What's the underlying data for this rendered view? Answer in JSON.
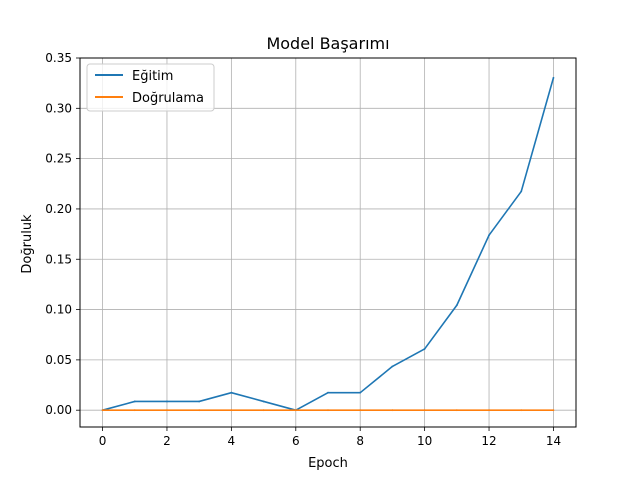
{
  "chart_data": {
    "type": "line",
    "title": "Model Başarımı",
    "xlabel": "Epoch",
    "ylabel": "Doğruluk",
    "xlim": [
      -0.7,
      14.7
    ],
    "ylim": [
      -0.0167,
      0.35
    ],
    "xticks": [
      0,
      2,
      4,
      6,
      8,
      10,
      12,
      14
    ],
    "xtick_labels": [
      "0",
      "2",
      "4",
      "6",
      "8",
      "10",
      "12",
      "14"
    ],
    "yticks": [
      0.0,
      0.05,
      0.1,
      0.15,
      0.2,
      0.25,
      0.3,
      0.35
    ],
    "ytick_labels": [
      "0.00",
      "0.05",
      "0.10",
      "0.15",
      "0.20",
      "0.25",
      "0.30",
      "0.35"
    ],
    "grid": true,
    "legend_position": "top-left",
    "x": [
      0,
      1,
      2,
      3,
      4,
      5,
      6,
      7,
      8,
      9,
      10,
      11,
      12,
      13,
      14
    ],
    "series": [
      {
        "name": "Eğitim",
        "color": "#1f77b4",
        "values": [
          0.0,
          0.0087,
          0.0087,
          0.0087,
          0.0174,
          0.0087,
          0.0,
          0.0174,
          0.0174,
          0.0435,
          0.0609,
          0.1043,
          0.1739,
          0.2174,
          0.3304
        ]
      },
      {
        "name": "Doğrulama",
        "color": "#ff7f0e",
        "values": [
          0.0,
          0.0,
          0.0,
          0.0,
          0.0,
          0.0,
          0.0,
          0.0,
          0.0,
          0.0,
          0.0,
          0.0,
          0.0,
          0.0,
          0.0
        ]
      }
    ]
  }
}
